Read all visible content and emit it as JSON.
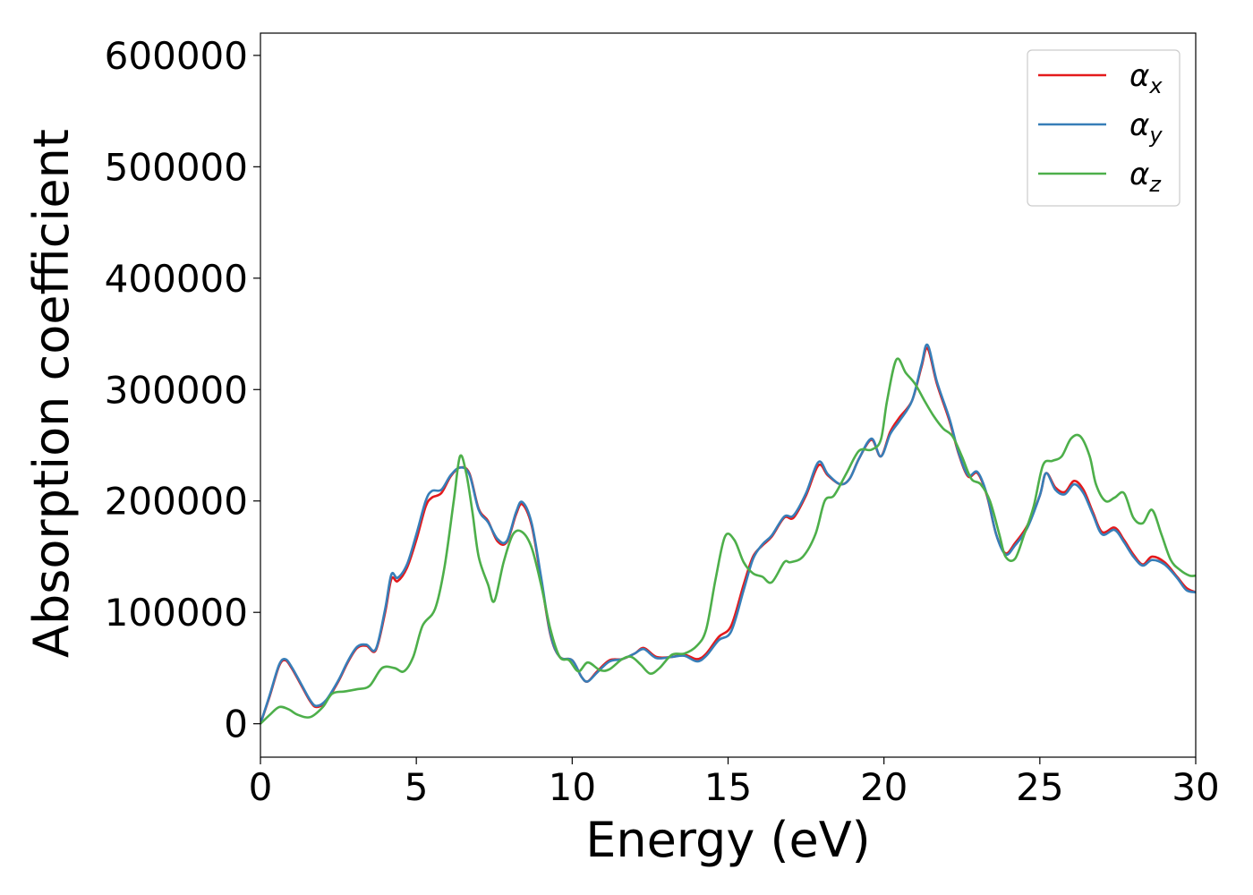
{
  "chart_data": {
    "type": "line",
    "title": "",
    "xlabel": "Energy (eV)",
    "ylabel": "Absorption coefficient",
    "xlim": [
      0,
      30
    ],
    "ylim": [
      -30000,
      620000
    ],
    "x_ticks": [
      0,
      5,
      10,
      15,
      20,
      25,
      30
    ],
    "y_ticks": [
      0,
      100000,
      200000,
      300000,
      400000,
      500000,
      600000
    ],
    "x_tick_labels": [
      "0",
      "5",
      "10",
      "15",
      "20",
      "25",
      "30"
    ],
    "y_tick_labels": [
      "0",
      "100000",
      "200000",
      "300000",
      "400000",
      "500000",
      "600000"
    ],
    "grid": false,
    "legend_position": "top-right",
    "series": [
      {
        "name": "α_x",
        "label_base": "α",
        "label_sub": "x",
        "color": "#e41a1c",
        "points": [
          [
            0,
            0
          ],
          [
            0.3,
            25000
          ],
          [
            0.6,
            52000
          ],
          [
            0.8,
            57000
          ],
          [
            1.0,
            50000
          ],
          [
            1.3,
            35000
          ],
          [
            1.6,
            20000
          ],
          [
            1.8,
            15000
          ],
          [
            2.1,
            20000
          ],
          [
            2.5,
            38000
          ],
          [
            2.8,
            55000
          ],
          [
            3.1,
            68000
          ],
          [
            3.4,
            70000
          ],
          [
            3.7,
            66000
          ],
          [
            4.0,
            100000
          ],
          [
            4.2,
            130000
          ],
          [
            4.4,
            128000
          ],
          [
            4.7,
            140000
          ],
          [
            5.0,
            165000
          ],
          [
            5.3,
            195000
          ],
          [
            5.5,
            203000
          ],
          [
            5.8,
            207000
          ],
          [
            6.1,
            222000
          ],
          [
            6.4,
            230000
          ],
          [
            6.7,
            225000
          ],
          [
            7.0,
            193000
          ],
          [
            7.3,
            182000
          ],
          [
            7.6,
            164000
          ],
          [
            7.9,
            163000
          ],
          [
            8.2,
            188000
          ],
          [
            8.4,
            197000
          ],
          [
            8.7,
            178000
          ],
          [
            9.0,
            130000
          ],
          [
            9.3,
            80000
          ],
          [
            9.6,
            60000
          ],
          [
            10.0,
            57000
          ],
          [
            10.3,
            42000
          ],
          [
            10.5,
            38000
          ],
          [
            10.8,
            47000
          ],
          [
            11.2,
            57000
          ],
          [
            11.6,
            58000
          ],
          [
            12.0,
            63000
          ],
          [
            12.3,
            68000
          ],
          [
            12.7,
            60000
          ],
          [
            13.2,
            60000
          ],
          [
            13.6,
            62000
          ],
          [
            14.0,
            58000
          ],
          [
            14.3,
            63000
          ],
          [
            14.7,
            78000
          ],
          [
            15.1,
            88000
          ],
          [
            15.5,
            125000
          ],
          [
            15.8,
            150000
          ],
          [
            16.1,
            160000
          ],
          [
            16.4,
            168000
          ],
          [
            16.8,
            185000
          ],
          [
            17.1,
            185000
          ],
          [
            17.5,
            205000
          ],
          [
            17.9,
            232000
          ],
          [
            18.2,
            223000
          ],
          [
            18.6,
            215000
          ],
          [
            18.9,
            220000
          ],
          [
            19.2,
            238000
          ],
          [
            19.6,
            255000
          ],
          [
            19.9,
            240000
          ],
          [
            20.2,
            262000
          ],
          [
            20.5,
            275000
          ],
          [
            20.9,
            290000
          ],
          [
            21.2,
            320000
          ],
          [
            21.4,
            337000
          ],
          [
            21.7,
            305000
          ],
          [
            22.1,
            272000
          ],
          [
            22.4,
            242000
          ],
          [
            22.7,
            222000
          ],
          [
            23.0,
            225000
          ],
          [
            23.3,
            205000
          ],
          [
            23.6,
            170000
          ],
          [
            23.9,
            153000
          ],
          [
            24.2,
            162000
          ],
          [
            24.6,
            178000
          ],
          [
            25.0,
            205000
          ],
          [
            25.2,
            225000
          ],
          [
            25.5,
            212000
          ],
          [
            25.8,
            208000
          ],
          [
            26.1,
            218000
          ],
          [
            26.4,
            210000
          ],
          [
            26.7,
            190000
          ],
          [
            27.0,
            172000
          ],
          [
            27.4,
            176000
          ],
          [
            27.7,
            165000
          ],
          [
            28.0,
            152000
          ],
          [
            28.3,
            143000
          ],
          [
            28.6,
            150000
          ],
          [
            29.0,
            145000
          ],
          [
            29.4,
            132000
          ],
          [
            29.7,
            122000
          ],
          [
            30.0,
            118000
          ]
        ]
      },
      {
        "name": "α_y",
        "label_base": "α",
        "label_sub": "y",
        "color": "#377eb8",
        "points": [
          [
            0,
            0
          ],
          [
            0.3,
            26000
          ],
          [
            0.6,
            53000
          ],
          [
            0.8,
            58000
          ],
          [
            1.0,
            51000
          ],
          [
            1.3,
            36000
          ],
          [
            1.6,
            21000
          ],
          [
            1.8,
            16000
          ],
          [
            2.1,
            21000
          ],
          [
            2.5,
            39000
          ],
          [
            2.8,
            56000
          ],
          [
            3.1,
            69000
          ],
          [
            3.4,
            71000
          ],
          [
            3.7,
            67000
          ],
          [
            4.0,
            103000
          ],
          [
            4.2,
            134000
          ],
          [
            4.4,
            131000
          ],
          [
            4.7,
            143000
          ],
          [
            5.0,
            170000
          ],
          [
            5.3,
            200000
          ],
          [
            5.5,
            209000
          ],
          [
            5.8,
            210000
          ],
          [
            6.1,
            223000
          ],
          [
            6.4,
            230000
          ],
          [
            6.7,
            224000
          ],
          [
            7.0,
            192000
          ],
          [
            7.3,
            181000
          ],
          [
            7.6,
            166000
          ],
          [
            7.9,
            164000
          ],
          [
            8.2,
            190000
          ],
          [
            8.4,
            199000
          ],
          [
            8.7,
            180000
          ],
          [
            9.0,
            132000
          ],
          [
            9.3,
            81000
          ],
          [
            9.6,
            60000
          ],
          [
            10.0,
            57000
          ],
          [
            10.3,
            42000
          ],
          [
            10.5,
            38000
          ],
          [
            10.8,
            46000
          ],
          [
            11.2,
            56000
          ],
          [
            11.6,
            58000
          ],
          [
            12.0,
            63000
          ],
          [
            12.3,
            67000
          ],
          [
            12.7,
            59000
          ],
          [
            13.2,
            60000
          ],
          [
            13.6,
            61000
          ],
          [
            14.0,
            56000
          ],
          [
            14.3,
            61000
          ],
          [
            14.7,
            75000
          ],
          [
            15.1,
            83000
          ],
          [
            15.5,
            120000
          ],
          [
            15.8,
            148000
          ],
          [
            16.1,
            161000
          ],
          [
            16.4,
            169000
          ],
          [
            16.8,
            186000
          ],
          [
            17.1,
            187000
          ],
          [
            17.5,
            207000
          ],
          [
            17.9,
            235000
          ],
          [
            18.2,
            224000
          ],
          [
            18.6,
            215000
          ],
          [
            18.9,
            220000
          ],
          [
            19.2,
            238000
          ],
          [
            19.6,
            256000
          ],
          [
            19.9,
            240000
          ],
          [
            20.2,
            260000
          ],
          [
            20.5,
            272000
          ],
          [
            20.9,
            290000
          ],
          [
            21.2,
            322000
          ],
          [
            21.4,
            340000
          ],
          [
            21.7,
            307000
          ],
          [
            22.1,
            274000
          ],
          [
            22.4,
            243000
          ],
          [
            22.7,
            223000
          ],
          [
            23.0,
            226000
          ],
          [
            23.3,
            206000
          ],
          [
            23.6,
            170000
          ],
          [
            23.9,
            152000
          ],
          [
            24.2,
            160000
          ],
          [
            24.6,
            176000
          ],
          [
            25.0,
            205000
          ],
          [
            25.2,
            225000
          ],
          [
            25.5,
            210000
          ],
          [
            25.8,
            206000
          ],
          [
            26.1,
            215000
          ],
          [
            26.4,
            207000
          ],
          [
            26.7,
            188000
          ],
          [
            27.0,
            170000
          ],
          [
            27.4,
            174000
          ],
          [
            27.7,
            163000
          ],
          [
            28.0,
            150000
          ],
          [
            28.3,
            142000
          ],
          [
            28.6,
            147000
          ],
          [
            29.0,
            143000
          ],
          [
            29.4,
            131000
          ],
          [
            29.7,
            120000
          ],
          [
            30.0,
            118000
          ]
        ]
      },
      {
        "name": "α_z",
        "label_base": "α",
        "label_sub": "z",
        "color": "#4daf4a",
        "points": [
          [
            0,
            0
          ],
          [
            0.3,
            8000
          ],
          [
            0.6,
            15000
          ],
          [
            0.9,
            13000
          ],
          [
            1.2,
            8000
          ],
          [
            1.6,
            6000
          ],
          [
            2.0,
            15000
          ],
          [
            2.3,
            27000
          ],
          [
            2.7,
            29000
          ],
          [
            3.1,
            31000
          ],
          [
            3.5,
            34000
          ],
          [
            3.9,
            50000
          ],
          [
            4.3,
            50000
          ],
          [
            4.6,
            47000
          ],
          [
            4.9,
            60000
          ],
          [
            5.2,
            88000
          ],
          [
            5.6,
            103000
          ],
          [
            5.9,
            140000
          ],
          [
            6.2,
            200000
          ],
          [
            6.4,
            240000
          ],
          [
            6.6,
            225000
          ],
          [
            6.8,
            190000
          ],
          [
            7.0,
            150000
          ],
          [
            7.3,
            125000
          ],
          [
            7.5,
            110000
          ],
          [
            7.8,
            145000
          ],
          [
            8.1,
            170000
          ],
          [
            8.4,
            172000
          ],
          [
            8.7,
            158000
          ],
          [
            9.0,
            125000
          ],
          [
            9.3,
            85000
          ],
          [
            9.6,
            60000
          ],
          [
            9.9,
            57000
          ],
          [
            10.2,
            47000
          ],
          [
            10.5,
            55000
          ],
          [
            10.9,
            48000
          ],
          [
            11.2,
            49000
          ],
          [
            11.6,
            58000
          ],
          [
            11.9,
            60000
          ],
          [
            12.2,
            53000
          ],
          [
            12.5,
            45000
          ],
          [
            12.8,
            50000
          ],
          [
            13.2,
            62000
          ],
          [
            13.6,
            63000
          ],
          [
            14.0,
            70000
          ],
          [
            14.3,
            85000
          ],
          [
            14.6,
            130000
          ],
          [
            14.9,
            168000
          ],
          [
            15.2,
            165000
          ],
          [
            15.5,
            145000
          ],
          [
            15.8,
            135000
          ],
          [
            16.1,
            132000
          ],
          [
            16.4,
            127000
          ],
          [
            16.8,
            145000
          ],
          [
            17.0,
            145000
          ],
          [
            17.4,
            150000
          ],
          [
            17.8,
            170000
          ],
          [
            18.1,
            200000
          ],
          [
            18.4,
            205000
          ],
          [
            18.8,
            225000
          ],
          [
            19.2,
            245000
          ],
          [
            19.6,
            246000
          ],
          [
            19.9,
            255000
          ],
          [
            20.1,
            290000
          ],
          [
            20.4,
            327000
          ],
          [
            20.7,
            315000
          ],
          [
            21.0,
            305000
          ],
          [
            21.3,
            290000
          ],
          [
            21.6,
            276000
          ],
          [
            21.9,
            265000
          ],
          [
            22.2,
            258000
          ],
          [
            22.5,
            240000
          ],
          [
            22.8,
            220000
          ],
          [
            23.1,
            215000
          ],
          [
            23.4,
            200000
          ],
          [
            23.7,
            170000
          ],
          [
            23.9,
            150000
          ],
          [
            24.2,
            148000
          ],
          [
            24.5,
            170000
          ],
          [
            24.8,
            195000
          ],
          [
            25.1,
            232000
          ],
          [
            25.4,
            236000
          ],
          [
            25.7,
            240000
          ],
          [
            26.0,
            256000
          ],
          [
            26.3,
            258000
          ],
          [
            26.6,
            240000
          ],
          [
            26.8,
            215000
          ],
          [
            27.1,
            200000
          ],
          [
            27.4,
            203000
          ],
          [
            27.7,
            207000
          ],
          [
            28.0,
            185000
          ],
          [
            28.3,
            180000
          ],
          [
            28.6,
            192000
          ],
          [
            28.9,
            170000
          ],
          [
            29.2,
            147000
          ],
          [
            29.5,
            138000
          ],
          [
            29.8,
            133000
          ],
          [
            30.0,
            133000
          ]
        ]
      }
    ]
  }
}
